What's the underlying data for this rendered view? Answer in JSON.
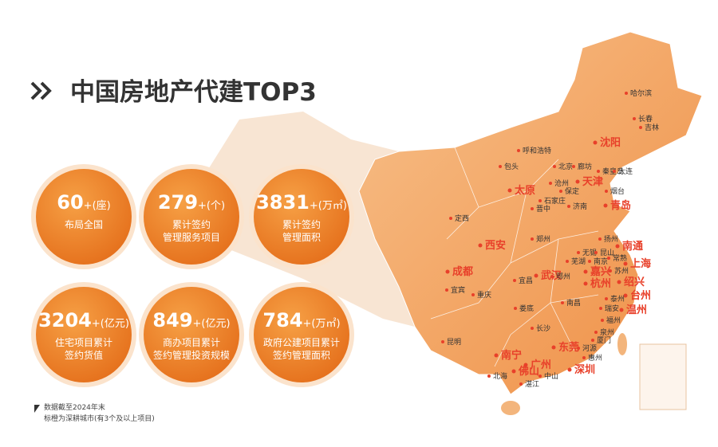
{
  "title": "中国房地产代建TOP3",
  "stats": [
    {
      "value": 60,
      "unit": "+(座)",
      "lines": [
        "布局全国"
      ]
    },
    {
      "value": 279,
      "unit": "+(个)",
      "lines": [
        "累计签约",
        "管理服务项目"
      ]
    },
    {
      "value": 3831,
      "unit": "+(万㎡)",
      "lines": [
        "累计签约",
        "管理面积"
      ]
    },
    {
      "value": 3204,
      "unit": "+(亿元)",
      "lines": [
        "住宅项目累计",
        "签约货值"
      ]
    },
    {
      "value": 849,
      "unit": "+(亿元)",
      "lines": [
        "商办项目累计",
        "签约管理投资规模"
      ]
    },
    {
      "value": 784,
      "unit": "+(万㎡)",
      "lines": [
        "政府公建项目累计",
        "签约管理面积"
      ]
    }
  ],
  "highlighted_cities": [
    "沈阳",
    "天津",
    "太原",
    "青岛",
    "西安",
    "南通",
    "上海",
    "嘉兴",
    "成都",
    "武汉",
    "绍兴",
    "杭州",
    "台州",
    "温州",
    "南宁",
    "东莞",
    "广州",
    "佛山",
    "深圳"
  ],
  "cities": [
    "哈尔滨",
    "长春",
    "吉林",
    "呼和浩特",
    "包头",
    "北京",
    "廊坊",
    "秦皇岛",
    "大连",
    "沧州",
    "保定",
    "石家庄",
    "烟台",
    "晋中",
    "济南",
    "定西",
    "郑州",
    "扬州",
    "无锡",
    "昆山",
    "芜湖",
    "南京",
    "常熟",
    "苏州",
    "鄂州",
    "宜昌",
    "宜宾",
    "重庆",
    "南昌",
    "泰州",
    "瑞安",
    "娄底",
    "长沙",
    "福州",
    "泉州",
    "昆明",
    "厦门",
    "河源",
    "惠州",
    "北海",
    "中山",
    "湛江"
  ],
  "footnotes": [
    "数据截至2024年末",
    "标橙为深耕城市(有3个及以上项目)"
  ]
}
